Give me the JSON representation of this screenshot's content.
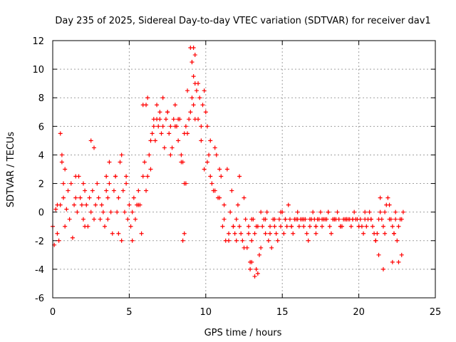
{
  "chart_data": {
    "type": "scatter",
    "title": "Day 235 of 2025, Sidereal Day-to-day VTEC variation (SDTVAR) for receiver dav1",
    "xlabel": "GPS time / hours",
    "ylabel": "SDTVAR / TECUs",
    "xlim": [
      0,
      25
    ],
    "ylim": [
      -6,
      12
    ],
    "x_ticks": [
      0,
      5,
      10,
      15,
      20,
      25
    ],
    "y_ticks": [
      -6,
      -4,
      -2,
      0,
      2,
      4,
      6,
      8,
      10,
      12
    ],
    "x_tick_labels": [
      "0",
      "5",
      "10",
      "15",
      "20",
      "25"
    ],
    "y_tick_labels": [
      "-6",
      "-4",
      "-2",
      "0",
      "2",
      "4",
      "6",
      "8",
      "10",
      "12"
    ],
    "grid": true,
    "marker": "plus",
    "marker_color": "#ff0000",
    "series": [
      {
        "name": "SDTVAR",
        "x": [
          0.0,
          0.1,
          0.2,
          0.3,
          0.4,
          0.5,
          0.6,
          0.7,
          0.8,
          0.9,
          1.0,
          1.1,
          1.2,
          1.3,
          1.4,
          1.5,
          1.6,
          1.7,
          1.8,
          1.9,
          2.0,
          2.1,
          2.2,
          2.3,
          2.4,
          2.5,
          2.6,
          2.7,
          2.8,
          2.9,
          3.0,
          3.1,
          3.2,
          3.3,
          3.4,
          3.5,
          3.6,
          3.7,
          3.8,
          3.9,
          4.0,
          4.1,
          4.2,
          4.3,
          4.4,
          4.5,
          4.6,
          4.7,
          4.8,
          4.9,
          5.0,
          5.1,
          5.2,
          5.3,
          5.4,
          5.5,
          5.6,
          5.7,
          5.8,
          5.9,
          6.0,
          6.1,
          6.2,
          6.3,
          6.4,
          6.5,
          6.6,
          6.7,
          6.8,
          6.9,
          7.0,
          7.1,
          7.2,
          7.3,
          7.4,
          7.5,
          7.6,
          7.7,
          7.8,
          7.9,
          8.0,
          8.1,
          8.2,
          8.3,
          8.4,
          8.5,
          8.6,
          8.7,
          8.8,
          8.9,
          9.0,
          9.1,
          9.2,
          9.3,
          9.4,
          9.5,
          9.6,
          9.7,
          9.8,
          9.9,
          10.0,
          10.1,
          10.2,
          10.3,
          10.4,
          10.5,
          10.6,
          10.7,
          10.8,
          10.9,
          11.0,
          11.1,
          11.2,
          11.3,
          11.4,
          11.5,
          11.6,
          11.7,
          11.8,
          11.9,
          12.0,
          12.1,
          12.2,
          12.3,
          12.4,
          12.5,
          12.6,
          12.7,
          12.8,
          12.9,
          13.0,
          13.1,
          13.2,
          13.3,
          13.4,
          13.5,
          13.6,
          13.7,
          13.8,
          13.9,
          14.0,
          14.1,
          14.2,
          14.3,
          14.4,
          14.5,
          14.6,
          14.7,
          14.8,
          14.9,
          15.0,
          15.1,
          15.2,
          15.3,
          15.4,
          15.5,
          15.6,
          15.7,
          15.8,
          15.9,
          16.0,
          16.1,
          16.2,
          16.3,
          16.4,
          16.5,
          16.6,
          16.7,
          16.8,
          16.9,
          17.0,
          17.1,
          17.2,
          17.3,
          17.4,
          17.5,
          17.6,
          17.7,
          17.8,
          17.9,
          18.0,
          18.1,
          18.2,
          18.3,
          18.4,
          18.5,
          18.6,
          18.7,
          18.8,
          18.9,
          19.0,
          19.1,
          19.2,
          19.3,
          19.4,
          19.5,
          19.6,
          19.7,
          19.8,
          19.9,
          20.0,
          20.1,
          20.2,
          20.3,
          20.4,
          20.5,
          20.6,
          20.7,
          20.8,
          20.9,
          21.0,
          21.1,
          21.2,
          21.3,
          21.4,
          21.5,
          21.6,
          21.7,
          21.8,
          21.9,
          22.0,
          22.1,
          22.2,
          22.3,
          22.4,
          22.5,
          22.6,
          22.7,
          22.8,
          22.9,
          0.3,
          0.5,
          0.6,
          0.7,
          0.8,
          1.5,
          2.0,
          2.1,
          2.5,
          2.7,
          3.5,
          3.6,
          3.7,
          4.1,
          4.3,
          4.5,
          4.8,
          5.2,
          5.6,
          5.9,
          6.1,
          6.2,
          6.4,
          6.6,
          6.8,
          7.0,
          7.2,
          7.5,
          7.7,
          8.0,
          8.2,
          8.4,
          8.6,
          8.8,
          9.0,
          9.1,
          9.2,
          9.3,
          9.5,
          9.7,
          9.9,
          10.1,
          10.3,
          10.6,
          10.9,
          11.2,
          11.5,
          11.8,
          12.0,
          12.2,
          12.5,
          12.8,
          13.0,
          13.3,
          13.6,
          13.9,
          14.2,
          14.5,
          14.9,
          15.2,
          15.6,
          16.0,
          16.4,
          16.8,
          17.2,
          17.6,
          18.0,
          18.4,
          18.8,
          19.2,
          19.6,
          20.0,
          20.4,
          20.8,
          21.1,
          21.4,
          21.7,
          22.0,
          22.3,
          22.6,
          22.8,
          8.5,
          8.6,
          8.7,
          9.1,
          9.2,
          9.3,
          12.9,
          13.0,
          13.2,
          13.4,
          17.2,
          21.3,
          21.6,
          22.2,
          22.4
        ],
        "y": [
          -1.0,
          -2.3,
          0.2,
          -1.5,
          -2.0,
          0.5,
          4.0,
          1.0,
          -1.0,
          0.2,
          1.5,
          -0.5,
          2.0,
          -1.8,
          0.5,
          1.0,
          0.0,
          2.5,
          1.0,
          0.5,
          -0.5,
          1.5,
          0.5,
          -1.0,
          1.0,
          0.0,
          1.5,
          -0.5,
          0.5,
          2.0,
          1.0,
          -0.5,
          0.5,
          0.0,
          -1.0,
          1.5,
          -0.5,
          2.0,
          0.0,
          -1.5,
          1.5,
          2.5,
          0.0,
          1.0,
          3.5,
          -2.0,
          1.5,
          0.0,
          2.0,
          -0.5,
          0.5,
          -1.0,
          0.0,
          1.0,
          -0.5,
          0.5,
          1.5,
          0.5,
          -1.5,
          2.5,
          3.5,
          1.5,
          2.5,
          4.0,
          3.0,
          5.5,
          6.5,
          5.0,
          7.5,
          6.0,
          6.5,
          5.5,
          6.0,
          4.5,
          6.5,
          7.0,
          5.5,
          6.0,
          4.5,
          6.5,
          7.5,
          6.0,
          5.0,
          6.5,
          4.0,
          3.5,
          5.5,
          6.0,
          5.5,
          6.5,
          7.0,
          8.0,
          7.5,
          6.5,
          8.5,
          9.0,
          8.0,
          6.0,
          7.5,
          8.5,
          7.0,
          6.0,
          4.0,
          5.0,
          2.0,
          1.5,
          4.5,
          4.0,
          1.0,
          3.0,
          2.5,
          -1.0,
          0.5,
          -2.0,
          3.0,
          -1.5,
          0.0,
          1.5,
          -1.0,
          -1.5,
          -0.5,
          0.5,
          2.5,
          -1.5,
          -2.0,
          1.0,
          -0.5,
          -2.5,
          -1.0,
          -3.5,
          -2.0,
          -0.5,
          -1.5,
          -4.0,
          -1.0,
          -3.0,
          -2.5,
          -1.0,
          -0.5,
          -1.5,
          0.0,
          -2.0,
          -1.0,
          -2.5,
          -0.5,
          -1.0,
          -1.5,
          -2.0,
          -0.5,
          -1.0,
          0.0,
          -1.5,
          -0.5,
          -1.0,
          0.5,
          -0.5,
          -1.0,
          -1.5,
          -0.5,
          -0.5,
          0.0,
          -1.0,
          -0.5,
          -0.5,
          -1.0,
          -0.5,
          -1.5,
          -2.0,
          -1.0,
          -0.5,
          0.0,
          -0.5,
          -1.0,
          -0.5,
          -0.5,
          0.0,
          -1.0,
          -0.5,
          -0.5,
          -0.5,
          0.0,
          -1.0,
          -1.5,
          -0.5,
          -0.5,
          -0.5,
          0.0,
          -0.5,
          -1.0,
          -1.0,
          -0.5,
          -0.5,
          -0.5,
          -0.5,
          -0.5,
          -1.0,
          -0.5,
          0.0,
          -0.5,
          -0.5,
          -1.0,
          -0.5,
          -1.0,
          -1.5,
          -0.5,
          -1.0,
          -0.5,
          0.0,
          -0.5,
          -1.0,
          -1.5,
          -2.0,
          -1.5,
          -0.5,
          0.0,
          -0.5,
          -1.0,
          -1.5,
          0.5,
          1.0,
          0.5,
          -0.5,
          -1.0,
          -1.5,
          0.0,
          -2.0,
          -1.0,
          -0.5,
          -0.5,
          0.0,
          0.5,
          5.5,
          3.5,
          2.0,
          3.0,
          2.5,
          2.0,
          -1.0,
          5.0,
          4.5,
          2.5,
          1.0,
          3.5,
          2.5,
          -1.5,
          4.0,
          2.5,
          -2.0,
          0.5,
          7.5,
          7.5,
          8.0,
          5.0,
          6.0,
          6.5,
          7.0,
          8.0,
          7.0,
          4.0,
          6.0,
          6.5,
          3.5,
          2.0,
          8.5,
          11.5,
          10.5,
          9.5,
          9.0,
          6.5,
          5.0,
          3.0,
          3.5,
          2.5,
          1.5,
          1.0,
          -0.5,
          -2.0,
          -1.0,
          -2.0,
          -1.0,
          -2.5,
          -1.5,
          -0.5,
          -1.0,
          0.0,
          -0.5,
          -1.5,
          -0.5,
          0.0,
          -0.5,
          -1.0,
          -0.5,
          -0.5,
          -0.5,
          -1.0,
          -0.5,
          0.0,
          -0.5,
          -1.0,
          -0.5,
          -0.5,
          -1.0,
          0.0,
          -0.5,
          -2.0,
          1.0,
          0.0,
          -0.5,
          -1.5,
          -3.5,
          -3.0,
          -2.0,
          -1.5,
          2.0,
          10.5,
          11.5,
          11.0,
          -4.0,
          -3.5,
          -4.5,
          -4.3,
          -1.5,
          -3.0,
          -4.0,
          -3.5,
          -0.5
        ]
      }
    ]
  }
}
